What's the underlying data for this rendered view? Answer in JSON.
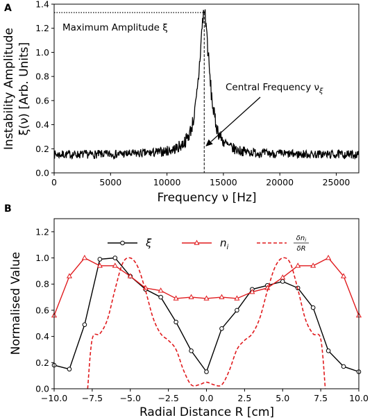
{
  "figure_labels": {
    "panel_a": "A",
    "panel_b": "B"
  },
  "colors": {
    "black": "#000000",
    "red": "#e0191c"
  },
  "chart_data": [
    {
      "panel": "A",
      "type": "line",
      "xlabel": "Frequency ν [Hz]",
      "ylabel_line1": "Instability Amplitude",
      "ylabel_line2": "ξ(ν) [Arb. Units]",
      "xlim": [
        0,
        27000
      ],
      "ylim": [
        0.0,
        1.4
      ],
      "x_ticks": [
        0,
        5000,
        10000,
        15000,
        20000,
        25000
      ],
      "x_tick_labels": [
        "0",
        "5000",
        "10000",
        "15000",
        "20000",
        "25000"
      ],
      "y_ticks": [
        0.0,
        0.2,
        0.4,
        0.6,
        0.8,
        1.0,
        1.2,
        1.4
      ],
      "y_tick_labels": [
        "0.0",
        "0.2",
        "0.4",
        "0.6",
        "0.8",
        "1.0",
        "1.2",
        "1.4"
      ],
      "grid": false,
      "peak_frequency": 13300,
      "peak_amplitude": 1.33,
      "annotations": {
        "max_label": "Maximum Amplitude ξ",
        "central_label": "Central Frequency ν",
        "central_subscript": "ξ",
        "arrow_target": [
          13300,
          0.22
        ]
      },
      "spectrum_shape": {
        "baseline": 0.15,
        "width_hz": 550,
        "noise_amplitude": 0.035
      },
      "series": [
        {
          "color": "#000000",
          "x": [
            0,
            1000,
            2000,
            3000,
            4000,
            5000,
            6000,
            7000,
            8000,
            9000,
            10000,
            11000,
            12000,
            12500,
            13000,
            13300,
            13600,
            14000,
            14500,
            15000,
            16000,
            17000,
            18000,
            19000,
            20000,
            21000,
            22000,
            23000,
            24000,
            25000,
            26000,
            27000
          ],
          "y": [
            0.18,
            0.15,
            0.17,
            0.16,
            0.12,
            0.13,
            0.14,
            0.15,
            0.15,
            0.17,
            0.19,
            0.22,
            0.33,
            0.5,
            0.95,
            1.33,
            0.9,
            0.5,
            0.3,
            0.24,
            0.2,
            0.17,
            0.16,
            0.14,
            0.15,
            0.15,
            0.14,
            0.15,
            0.15,
            0.14,
            0.15,
            0.16
          ]
        }
      ]
    },
    {
      "panel": "B",
      "type": "line",
      "xlabel": "Radial Distance R [cm]",
      "ylabel": "Normalised Value",
      "xlim": [
        -10.0,
        10.0
      ],
      "ylim": [
        0.0,
        1.3
      ],
      "x_ticks": [
        -10,
        -7.5,
        -5,
        -2.5,
        0,
        2.5,
        5,
        7.5,
        10
      ],
      "x_tick_labels": [
        "−10.0",
        "−7.5",
        "−5.0",
        "−2.5",
        "0.0",
        "2.5",
        "5.0",
        "7.5",
        "10.0"
      ],
      "y_ticks": [
        0.0,
        0.2,
        0.4,
        0.6,
        0.8,
        1.0,
        1.2
      ],
      "y_tick_labels": [
        "0.0",
        "0.2",
        "0.4",
        "0.6",
        "0.8",
        "1.0",
        "1.2"
      ],
      "grid": false,
      "legend_position": "top-center",
      "series": [
        {
          "name": "ξ",
          "color": "#000000",
          "marker": "circle",
          "style": "solid",
          "x": [
            -10,
            -9,
            -8,
            -7,
            -6,
            -5,
            -4,
            -3,
            -2,
            -1,
            0,
            1,
            2,
            3,
            4,
            5,
            6,
            7,
            8,
            9,
            10
          ],
          "y": [
            0.18,
            0.15,
            0.49,
            0.99,
            1.0,
            0.86,
            0.76,
            0.7,
            0.51,
            0.29,
            0.13,
            0.46,
            0.6,
            0.76,
            0.79,
            0.82,
            0.77,
            0.62,
            0.29,
            0.17,
            0.13
          ]
        },
        {
          "name": "n_i",
          "color": "#e0191c",
          "marker": "triangle",
          "style": "solid",
          "x": [
            -10,
            -9,
            -8,
            -7,
            -6,
            -5,
            -4,
            -3,
            -2,
            -1,
            0,
            1,
            2,
            3,
            4,
            5,
            6,
            7,
            8,
            9,
            10
          ],
          "y": [
            0.56,
            0.86,
            1.0,
            0.94,
            0.94,
            0.86,
            0.77,
            0.75,
            0.69,
            0.7,
            0.69,
            0.7,
            0.69,
            0.74,
            0.77,
            0.85,
            0.94,
            0.94,
            1.0,
            0.86,
            0.56
          ]
        },
        {
          "name": "δn_i/δR",
          "color": "#e0191c",
          "marker": "none",
          "style": "dashed",
          "x": [
            -7.8,
            -7.5,
            -7.0,
            -6.5,
            -6.0,
            -5.5,
            -5.0,
            -4.5,
            -4.0,
            -3.5,
            -3.0,
            -2.5,
            -2.0,
            -1.5,
            -1.0,
            -0.5,
            0.0,
            0.5,
            1.0,
            1.5,
            2.0,
            2.5,
            3.0,
            3.5,
            4.0,
            4.5,
            5.0,
            5.5,
            6.0,
            6.5,
            7.0,
            7.5,
            7.8
          ],
          "y": [
            0.0,
            0.38,
            0.42,
            0.53,
            0.76,
            0.96,
            1.0,
            0.93,
            0.75,
            0.54,
            0.42,
            0.37,
            0.3,
            0.14,
            0.03,
            0.03,
            0.05,
            0.03,
            0.03,
            0.14,
            0.3,
            0.37,
            0.42,
            0.54,
            0.75,
            0.93,
            1.0,
            0.96,
            0.76,
            0.53,
            0.42,
            0.38,
            0.0
          ]
        }
      ]
    }
  ]
}
